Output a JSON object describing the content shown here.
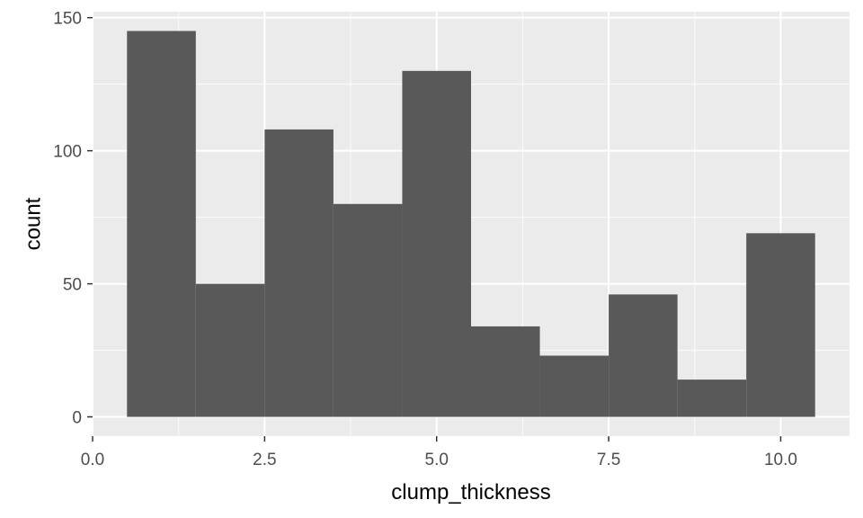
{
  "chart_data": {
    "type": "bar",
    "subtype": "histogram",
    "title": "",
    "xlabel": "clump_thickness",
    "ylabel": "count",
    "bins": [
      {
        "x0": 0.5,
        "x1": 1.5,
        "count": 145
      },
      {
        "x0": 1.5,
        "x1": 2.5,
        "count": 50
      },
      {
        "x0": 2.5,
        "x1": 3.5,
        "count": 108
      },
      {
        "x0": 3.5,
        "x1": 4.5,
        "count": 80
      },
      {
        "x0": 4.5,
        "x1": 5.5,
        "count": 130
      },
      {
        "x0": 5.5,
        "x1": 6.5,
        "count": 34
      },
      {
        "x0": 6.5,
        "x1": 7.5,
        "count": 23
      },
      {
        "x0": 7.5,
        "x1": 8.5,
        "count": 46
      },
      {
        "x0": 8.5,
        "x1": 9.5,
        "count": 14
      },
      {
        "x0": 9.5,
        "x1": 10.5,
        "count": 69
      }
    ],
    "xlim": [
      0.0,
      11.0
    ],
    "ylim": [
      -7.25,
      152.25
    ],
    "x_ticks": [
      0.0,
      2.5,
      5.0,
      7.5,
      10.0
    ],
    "x_tick_labels": [
      "0.0",
      "2.5",
      "5.0",
      "7.5",
      "10.0"
    ],
    "y_ticks": [
      0,
      50,
      100,
      150
    ],
    "y_tick_labels": [
      "0",
      "50",
      "100",
      "150"
    ],
    "grid": true,
    "colors": {
      "bar": "#595959",
      "panel": "#ebebeb",
      "grid": "#ffffff"
    }
  }
}
